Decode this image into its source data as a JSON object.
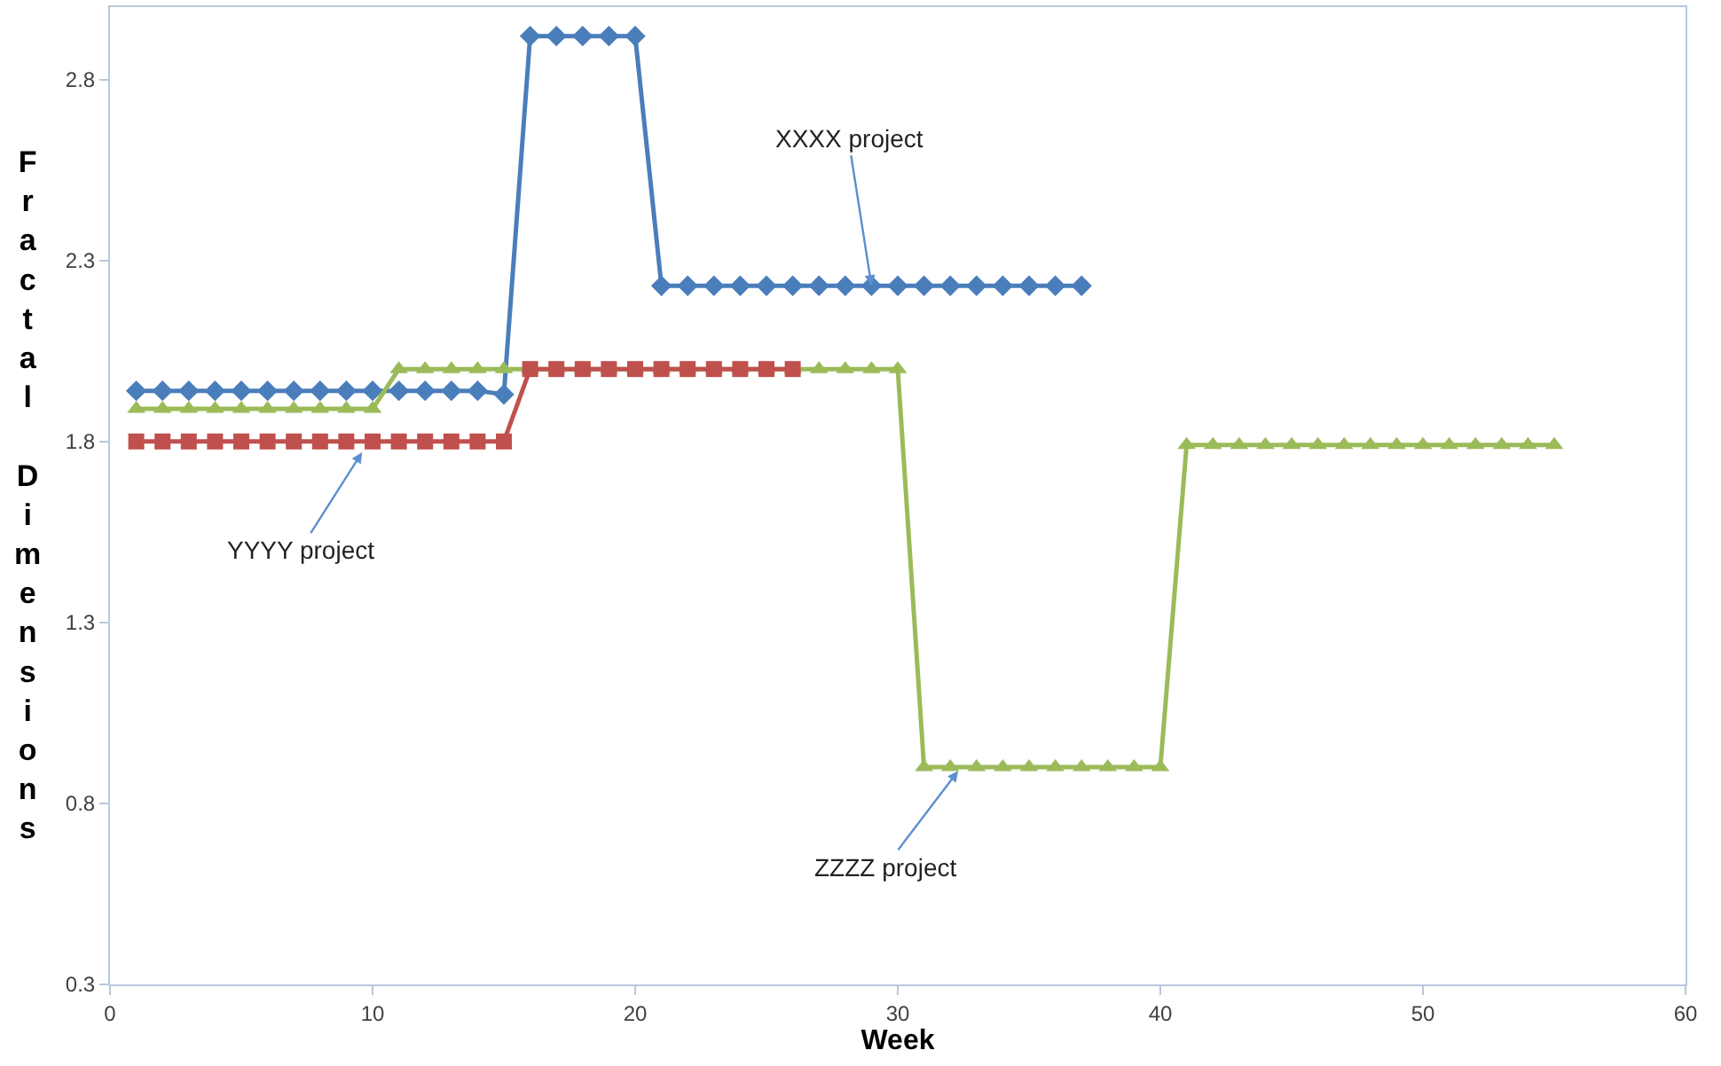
{
  "chart_data": {
    "type": "line",
    "xlabel": "Week",
    "ylabel": "Fractal Dimensions",
    "xlim": [
      0,
      60
    ],
    "xticks": [
      0,
      10,
      20,
      30,
      40,
      50,
      60
    ],
    "ylim": [
      0.3,
      3.0
    ],
    "yticks": [
      0.3,
      0.8,
      1.3,
      1.8,
      2.3,
      2.8
    ],
    "grid": false,
    "line_style": "solid",
    "series": [
      {
        "color": "#4a7ebb",
        "marker": "diamond",
        "x": [
          1,
          2,
          3,
          4,
          5,
          6,
          7,
          8,
          9,
          10,
          11,
          12,
          13,
          14,
          15,
          16,
          17,
          18,
          19,
          20,
          21,
          22,
          23,
          24,
          25,
          26,
          27,
          28,
          29,
          30,
          31,
          32,
          33,
          34,
          35,
          36,
          37
        ],
        "values": [
          1.94,
          1.94,
          1.94,
          1.94,
          1.94,
          1.94,
          1.94,
          1.94,
          1.94,
          1.94,
          1.94,
          1.94,
          1.94,
          1.94,
          1.93,
          2.92,
          2.92,
          2.92,
          2.92,
          2.92,
          2.23,
          2.23,
          2.23,
          2.23,
          2.23,
          2.23,
          2.23,
          2.23,
          2.23,
          2.23,
          2.23,
          2.23,
          2.23,
          2.23,
          2.23,
          2.23,
          2.23
        ]
      },
      {
        "color": "#9bbb59",
        "marker": "triangle",
        "x": [
          1,
          2,
          3,
          4,
          5,
          6,
          7,
          8,
          9,
          10,
          11,
          12,
          13,
          14,
          15,
          16,
          17,
          18,
          19,
          20,
          21,
          22,
          23,
          24,
          25,
          26,
          27,
          28,
          29,
          30,
          31,
          32,
          33,
          34,
          35,
          36,
          37,
          38,
          39,
          40,
          41,
          42,
          43,
          44,
          45,
          46,
          47,
          48,
          49,
          50,
          51,
          52,
          53,
          54,
          55
        ],
        "values": [
          1.89,
          1.89,
          1.89,
          1.89,
          1.89,
          1.89,
          1.89,
          1.89,
          1.89,
          1.89,
          2.0,
          2.0,
          2.0,
          2.0,
          2.0,
          2.0,
          2.0,
          2.0,
          2.0,
          2.0,
          2.0,
          2.0,
          2.0,
          2.0,
          2.0,
          2.0,
          2.0,
          2.0,
          2.0,
          2.0,
          0.9,
          0.9,
          0.9,
          0.9,
          0.9,
          0.9,
          0.9,
          0.9,
          0.9,
          0.9,
          1.79,
          1.79,
          1.79,
          1.79,
          1.79,
          1.79,
          1.79,
          1.79,
          1.79,
          1.79,
          1.79,
          1.79,
          1.79,
          1.79,
          1.79
        ]
      },
      {
        "color": "#c0504d",
        "marker": "square",
        "x": [
          1,
          2,
          3,
          4,
          5,
          6,
          7,
          8,
          9,
          10,
          11,
          12,
          13,
          14,
          15,
          16,
          17,
          18,
          19,
          20,
          21,
          22,
          23,
          24,
          25,
          26
        ],
        "values": [
          1.8,
          1.8,
          1.8,
          1.8,
          1.8,
          1.8,
          1.8,
          1.8,
          1.8,
          1.8,
          1.8,
          1.8,
          1.8,
          1.8,
          1.8,
          2.0,
          2.0,
          2.0,
          2.0,
          2.0,
          2.0,
          2.0,
          2.0,
          2.0,
          2.0,
          2.0
        ]
      }
    ],
    "annotations": [
      {
        "text": "XXXX project",
        "x": 29,
        "y": 2.23
      },
      {
        "text": "YYYY project",
        "x": 9.6,
        "y": 1.77
      },
      {
        "text": "ZZZZ project",
        "x": 32.3,
        "y": 0.89
      }
    ]
  }
}
